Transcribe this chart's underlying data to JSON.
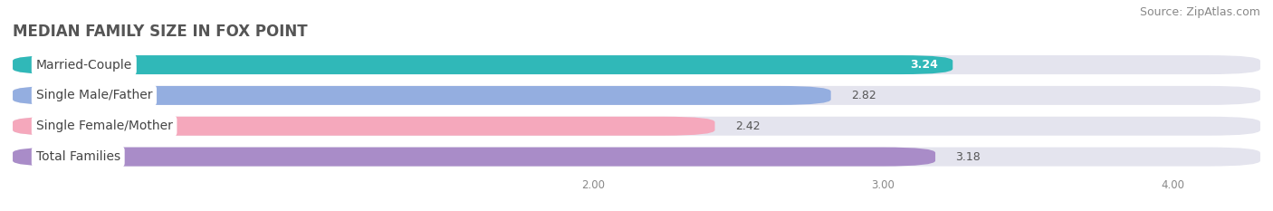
{
  "title": "MEDIAN FAMILY SIZE IN FOX POINT",
  "source": "Source: ZipAtlas.com",
  "categories": [
    "Married-Couple",
    "Single Male/Father",
    "Single Female/Mother",
    "Total Families"
  ],
  "values": [
    3.24,
    2.82,
    2.42,
    3.18
  ],
  "bar_colors": [
    "#30b8b8",
    "#94aee0",
    "#f5a8bc",
    "#a98cc8"
  ],
  "value_inside": [
    true,
    false,
    false,
    false
  ],
  "xlim_data": [
    0,
    4.0
  ],
  "xlim_display": [
    0,
    4.3
  ],
  "xticks": [
    2.0,
    3.0,
    4.0
  ],
  "xtick_labels": [
    "2.00",
    "3.00",
    "4.00"
  ],
  "bar_height": 0.62,
  "background_color": "#ffffff",
  "bar_bg_color": "#e4e4ee",
  "title_fontsize": 12,
  "source_fontsize": 9,
  "label_fontsize": 10,
  "value_fontsize": 9,
  "title_color": "#555555",
  "label_text_color": "#444444",
  "value_outside_color": "#555555",
  "value_inside_color": "#ffffff",
  "grid_color": "#ccccdd"
}
